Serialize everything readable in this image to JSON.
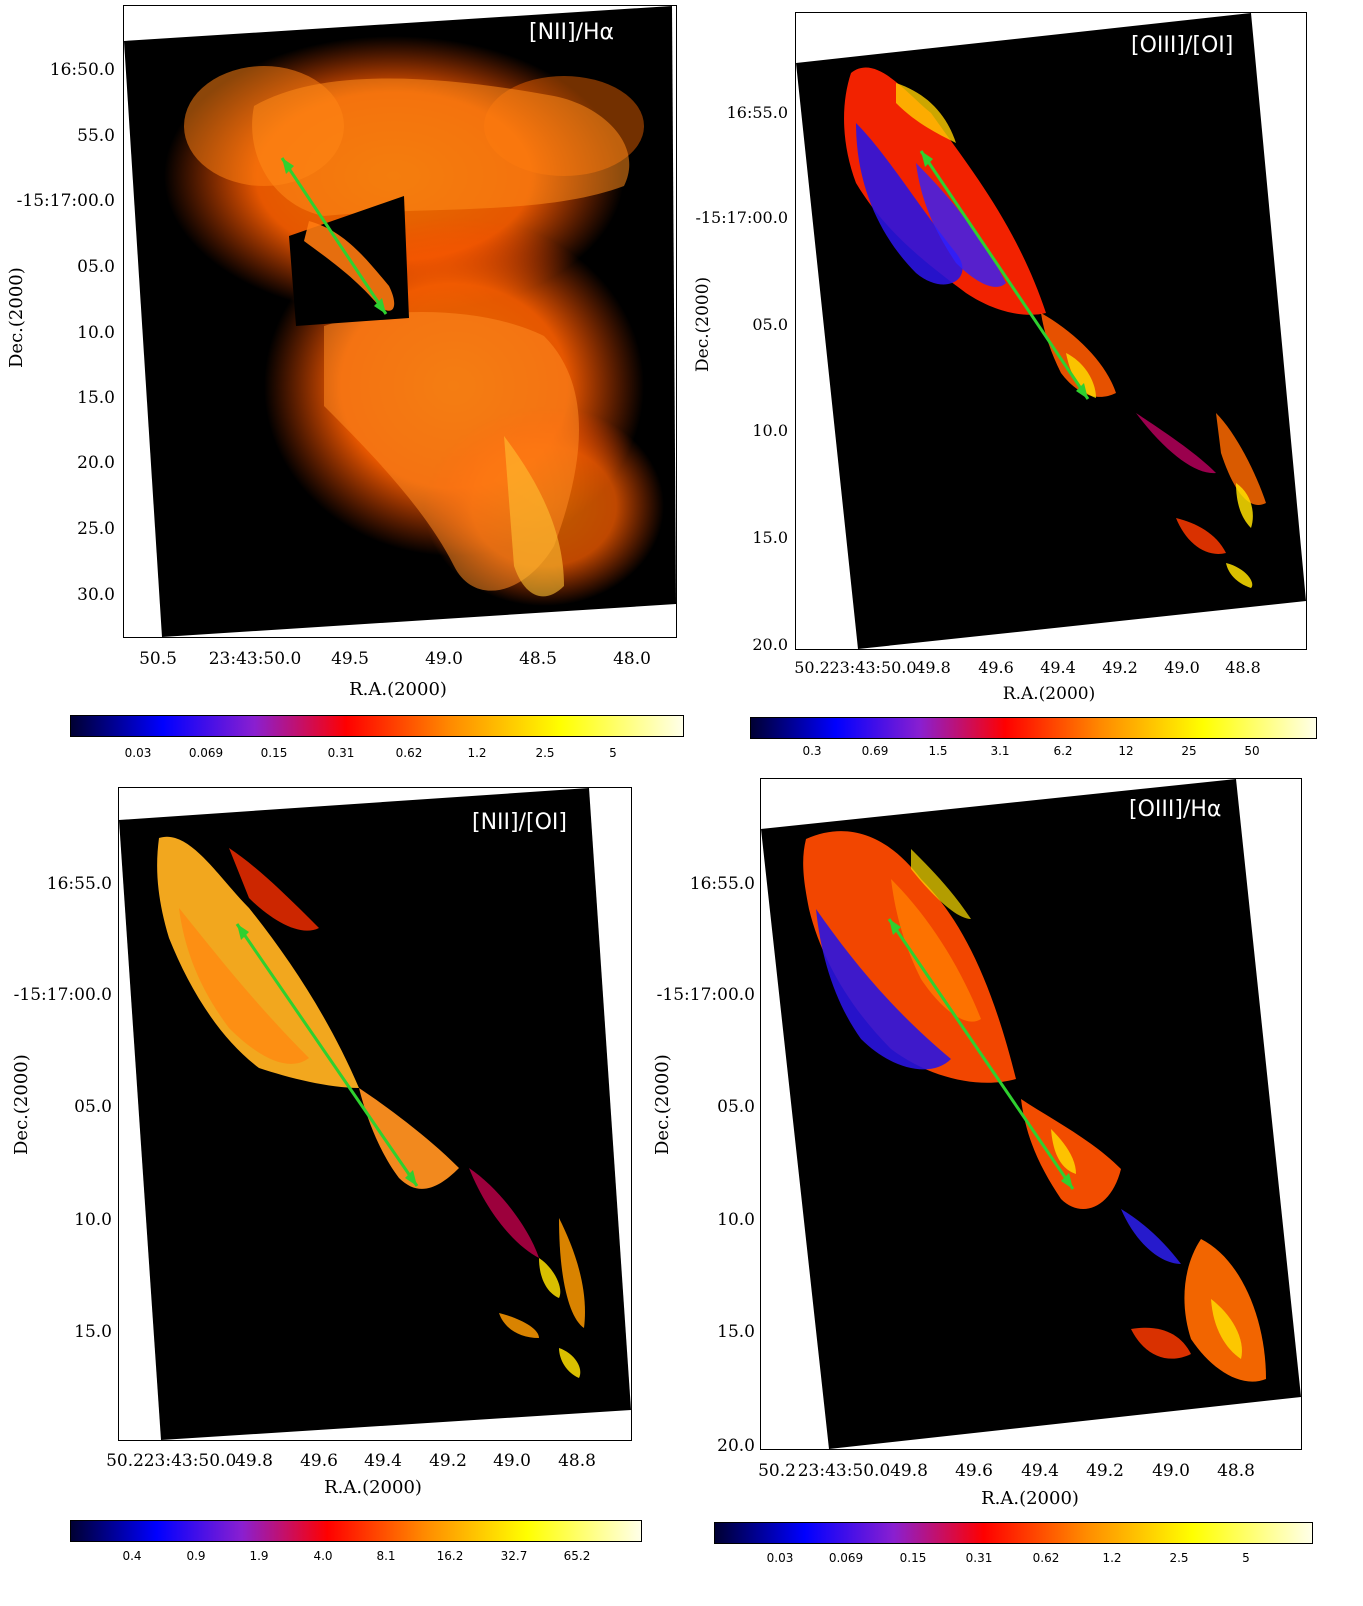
{
  "panels": [
    {
      "title": "[NII]/Hα",
      "yticks": [
        "16:50.0",
        "55.0",
        "-15:17:00.0",
        "05.0",
        "10.0",
        "15.0",
        "20.0",
        "25.0",
        "30.0"
      ],
      "xticks": [
        "50.5",
        "23:43:50.0",
        "49.5",
        "49.0",
        "48.5",
        "48.0"
      ],
      "xlabel": "R.A.(2000)",
      "ylabel": "Dec.(2000)",
      "colorbar": [
        "0.03",
        "0.069",
        "0.15",
        "0.31",
        "0.62",
        "1.2",
        "2.5",
        "5"
      ]
    },
    {
      "title": "[OIII]/[OI]",
      "yticks": [
        "16:55.0",
        "-15:17:00.0",
        "05.0",
        "10.0",
        "15.0",
        "20.0"
      ],
      "xticks": [
        "50.2",
        "23:43:50.0",
        "49.8",
        "49.6",
        "49.4",
        "49.2",
        "49.0",
        "48.8"
      ],
      "xlabel": "R.A.(2000)",
      "ylabel": "Dec.(2000)",
      "colorbar": [
        "0.3",
        "0.69",
        "1.5",
        "3.1",
        "6.2",
        "12",
        "25",
        "50"
      ]
    },
    {
      "title": "[NII]/[OI]",
      "yticks": [
        "16:55.0",
        "-15:17:00.0",
        "05.0",
        "10.0",
        "15.0"
      ],
      "xticks": [
        "50.2",
        "23:43:50.0",
        "49.8",
        "49.6",
        "49.4",
        "49.2",
        "49.0",
        "48.8"
      ],
      "xlabel": "R.A.(2000)",
      "ylabel": "Dec.(2000)",
      "colorbar": [
        "0.4",
        "0.9",
        "1.9",
        "4.0",
        "8.1",
        "16.2",
        "32.7",
        "65.2"
      ]
    },
    {
      "title": "[OIII]/Hα",
      "yticks": [
        "16:55.0",
        "-15:17:00.0",
        "05.0",
        "10.0",
        "15.0",
        "20.0"
      ],
      "xticks": [
        "50.2",
        "23:43:50.0",
        "49.8",
        "49.6",
        "49.4",
        "49.2",
        "49.0",
        "48.8"
      ],
      "xlabel": "R.A.(2000)",
      "ylabel": "Dec.(2000)",
      "colorbar": [
        "0.03",
        "0.069",
        "0.15",
        "0.31",
        "0.62",
        "1.2",
        "2.5",
        "5"
      ]
    }
  ],
  "colors": {
    "background_map": "#000000",
    "arrow": "#2fd02f",
    "colormap": [
      "#000033",
      "#0000ff",
      "#8a1fd0",
      "#ff0000",
      "#ff8a00",
      "#ffff00",
      "#ffffe8"
    ]
  }
}
